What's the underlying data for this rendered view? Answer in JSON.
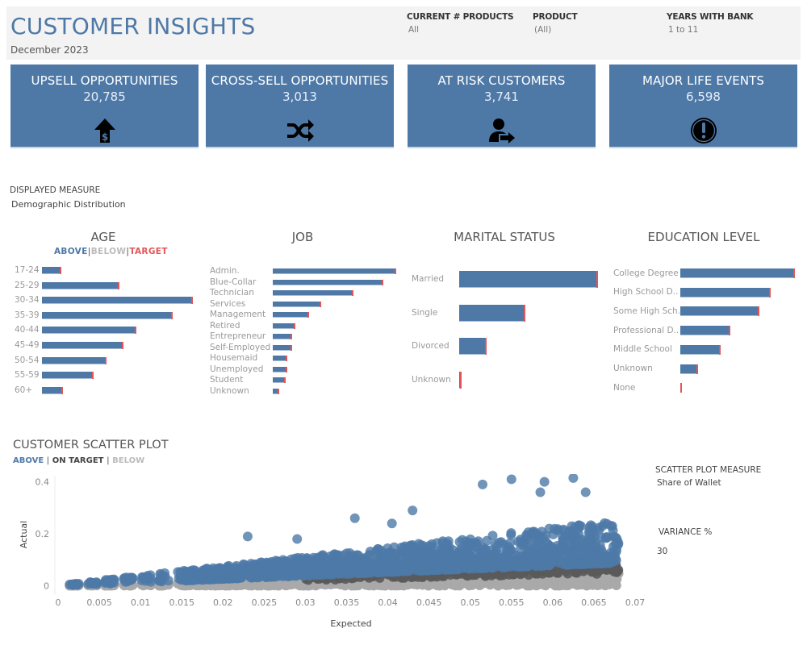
{
  "header": {
    "title": "CUSTOMER INSIGHTS",
    "subtitle": "December 2023",
    "filters": [
      {
        "label": "CURRENT # PRODUCTS",
        "value": "All"
      },
      {
        "label": "PRODUCT",
        "value": "(All)"
      },
      {
        "label": "YEARS WITH BANK",
        "value": "1 to 11"
      }
    ]
  },
  "cards": [
    {
      "label": "UPSELL OPPORTUNITIES",
      "value": "20,785",
      "icon": "upsell-dollar-arrow-icon"
    },
    {
      "label": "CROSS-SELL OPPORTUNITIES",
      "value": "3,013",
      "icon": "shuffle-icon"
    },
    {
      "label": "AT RISK CUSTOMERS",
      "value": "3,741",
      "icon": "user-leaving-icon"
    },
    {
      "label": "MAJOR LIFE EVENTS",
      "value": "6,598",
      "icon": "exclamation-circle-icon"
    }
  ],
  "displayed_measure": {
    "label": "DISPLAYED MEASURE",
    "value": "Demographic Distribution"
  },
  "legend": {
    "above": "ABOVE",
    "below": "BELOW",
    "target": "TARGET",
    "sep": "|"
  },
  "colors": {
    "above": "#4e79a7",
    "below": "#bbbbbb",
    "target": "#e15759",
    "on_target": "#555555",
    "scatter_below": "#a9a9a9"
  },
  "chart_data": [
    {
      "type": "bar",
      "title": "AGE",
      "categories": [
        "17-24",
        "25-29",
        "30-34",
        "35-39",
        "40-44",
        "45-49",
        "50-54",
        "55-59",
        "60+"
      ],
      "values": [
        23,
        95,
        186,
        161,
        116,
        100,
        79,
        63,
        25
      ],
      "target": [
        23,
        95,
        186,
        161,
        116,
        100,
        79,
        63,
        25
      ]
    },
    {
      "type": "bar",
      "title": "JOB",
      "categories": [
        "Admin.",
        "Blue-Collar",
        "Technician",
        "Services",
        "Management",
        "Retired",
        "Entrepreneur",
        "Self-Employed",
        "Housemaid",
        "Unemployed",
        "Student",
        "Unknown"
      ],
      "values": [
        152,
        136,
        99,
        59,
        44,
        27,
        23,
        23,
        17,
        17,
        15,
        7
      ],
      "target": [
        152,
        136,
        99,
        59,
        44,
        27,
        23,
        23,
        17,
        17,
        15,
        7
      ]
    },
    {
      "type": "bar",
      "title": "MARITAL STATUS",
      "categories": [
        "Married",
        "Single",
        "Divorced",
        "Unknown"
      ],
      "values": [
        171,
        81,
        33,
        2
      ],
      "target": [
        171,
        81,
        33,
        2
      ]
    },
    {
      "type": "bar",
      "title": "EDUCATION LEVEL",
      "categories": [
        "College Degree",
        "High School D..",
        "Some High Sch..",
        "Professional D..",
        "Middle School",
        "Unknown",
        "None"
      ],
      "values": [
        141,
        111,
        97,
        61,
        49,
        21,
        1
      ],
      "target": [
        141,
        111,
        97,
        61,
        49,
        21,
        1
      ]
    },
    {
      "type": "scatter",
      "title": "CUSTOMER SCATTER PLOT",
      "legend": {
        "above": "ABOVE",
        "on_target": "ON TARGET",
        "below": "BELOW"
      },
      "xlabel": "Expected",
      "ylabel": "Actual",
      "xlim": [
        0,
        0.07
      ],
      "ylim": [
        -0.02,
        0.43
      ],
      "x_ticks": [
        "0",
        "0.005",
        "0.01",
        "0.015",
        "0.02",
        "0.025",
        "0.03",
        "0.035",
        "0.04",
        "0.045",
        "0.05",
        "0.055",
        "0.06",
        "0.065",
        "0.07"
      ],
      "x_tick_values": [
        0,
        0.005,
        0.01,
        0.015,
        0.02,
        0.025,
        0.03,
        0.035,
        0.04,
        0.045,
        0.05,
        0.055,
        0.06,
        0.065,
        0.07
      ],
      "y_ticks": [
        "0",
        "0.2",
        "0.4"
      ],
      "y_tick_values": [
        0,
        0.2,
        0.4
      ],
      "expected_range": [
        0.002,
        0.068
      ],
      "variance_pct": 30,
      "outliers": [
        [
          0.055,
          0.41
        ],
        [
          0.059,
          0.4
        ],
        [
          0.0625,
          0.415
        ],
        [
          0.0515,
          0.39
        ],
        [
          0.043,
          0.29
        ],
        [
          0.036,
          0.26
        ],
        [
          0.023,
          0.19
        ],
        [
          0.029,
          0.18
        ],
        [
          0.0405,
          0.24
        ],
        [
          0.0585,
          0.36
        ],
        [
          0.064,
          0.36
        ]
      ]
    }
  ],
  "scatter_side": {
    "measure_label": "SCATTER PLOT MEASURE",
    "measure_value": "Share of Wallet",
    "variance_label": "VARIANCE %",
    "variance_value": "30"
  }
}
